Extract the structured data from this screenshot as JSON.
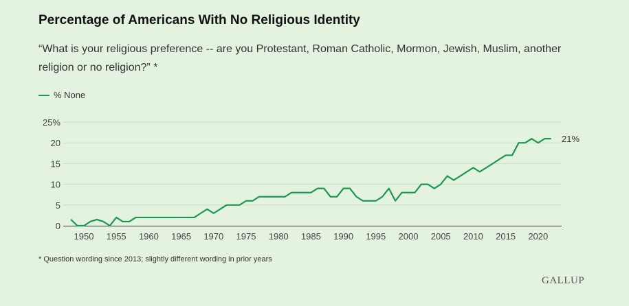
{
  "title": "Percentage of Americans With No Religious Identity",
  "subtitle": "“What is your religious preference -- are you Protestant, Roman Catholic, Mormon, Jewish, Muslim, another religion or no religion?” *",
  "footnote": "* Question wording since 2013; slightly different wording in prior years",
  "logo": "GALLUP",
  "colors": {
    "line": "#1a9850",
    "background": "#e4f2e0"
  },
  "chart_data": {
    "type": "line",
    "title": "Percentage of Americans With No Religious Identity",
    "legend": "top-left",
    "grid": true,
    "ylim": [
      0,
      25
    ],
    "yticks": [
      {
        "v": 0,
        "label": "0"
      },
      {
        "v": 5,
        "label": "5"
      },
      {
        "v": 10,
        "label": "10"
      },
      {
        "v": 15,
        "label": "15"
      },
      {
        "v": 20,
        "label": "20"
      },
      {
        "v": 25,
        "label": "25%"
      }
    ],
    "xticks": [
      1950,
      1955,
      1960,
      1965,
      1970,
      1975,
      1980,
      1985,
      1990,
      1995,
      2000,
      2005,
      2010,
      2015,
      2020
    ],
    "end_label": "21%",
    "series": [
      {
        "name": "% None",
        "x": [
          1948,
          1949,
          1950,
          1951,
          1952,
          1953,
          1954,
          1955,
          1956,
          1957,
          1958,
          1959,
          1960,
          1961,
          1962,
          1963,
          1964,
          1965,
          1966,
          1967,
          1968,
          1969,
          1970,
          1971,
          1972,
          1973,
          1974,
          1975,
          1976,
          1977,
          1978,
          1979,
          1980,
          1981,
          1982,
          1983,
          1984,
          1985,
          1986,
          1987,
          1988,
          1989,
          1990,
          1991,
          1992,
          1993,
          1994,
          1995,
          1996,
          1997,
          1998,
          1999,
          2000,
          2001,
          2002,
          2003,
          2004,
          2005,
          2006,
          2007,
          2008,
          2009,
          2010,
          2011,
          2012,
          2013,
          2014,
          2015,
          2016,
          2017,
          2018,
          2019,
          2020,
          2021,
          2022
        ],
        "values": [
          1.5,
          0,
          0,
          1,
          1.5,
          1,
          0,
          2,
          1,
          1,
          2,
          2,
          2,
          2,
          2,
          2,
          2,
          2,
          2,
          2,
          3,
          4,
          3,
          4,
          5,
          5,
          5,
          6,
          6,
          7,
          7,
          7,
          7,
          7,
          8,
          8,
          8,
          8,
          9,
          9,
          7,
          7,
          9,
          9,
          7,
          6,
          6,
          6,
          7,
          9,
          6,
          8,
          8,
          8,
          10,
          10,
          9,
          10,
          12,
          11,
          12,
          13,
          14,
          13,
          14,
          15,
          16,
          17,
          17,
          20,
          20,
          21,
          20,
          21,
          21
        ]
      }
    ]
  }
}
